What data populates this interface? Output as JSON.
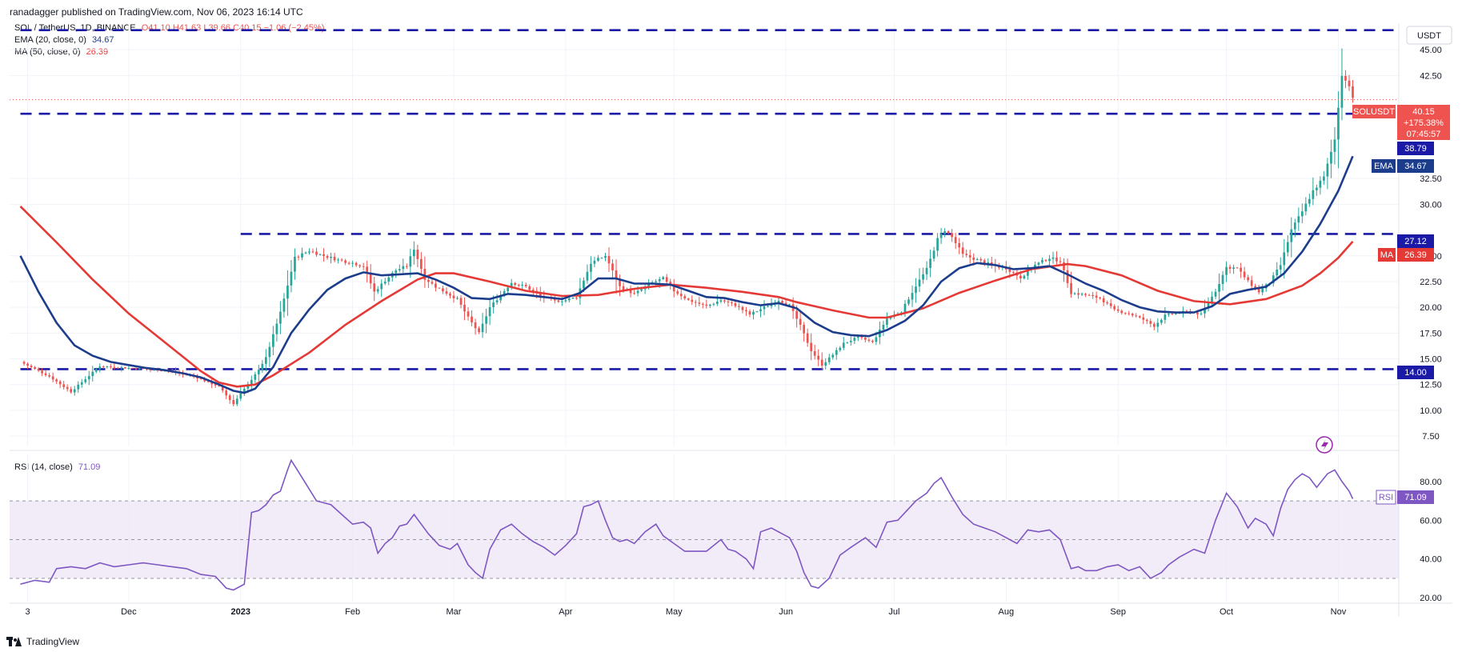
{
  "header": {
    "publisher": "ranadagger published on TradingView.com, Nov 06, 2023 16:14 UTC"
  },
  "legend": {
    "symbol": "SOL / TetherUS, 1D, BINANCE",
    "ohlc": "O41.10 H41.63 L39.66 C40.15 −1.06 (−2.45%)",
    "ema": {
      "label": "EMA (20, close, 0)",
      "value": "34.67"
    },
    "ma": {
      "label": "MA (50, close, 0)",
      "value": "26.39"
    },
    "rsi": {
      "label": "RSI (14, close)",
      "value": "71.09"
    }
  },
  "axis": {
    "currency": "USDT"
  },
  "tags": {
    "symbol_name": "SOLUSDT",
    "last_price": "40.15",
    "change": "+175.38%",
    "countdown": "07:45:57",
    "level_top_right": "38.79",
    "ema_name": "EMA",
    "ema_value": "34.67",
    "ma_name": "MA",
    "ma_value": "26.39",
    "level_mid": "27.12",
    "level_low": "14.00",
    "rsi_name": "RSI",
    "rsi_value": "71.09"
  },
  "colors": {
    "up": "#26a69a",
    "down": "#ef5350",
    "ema": "#1c3c8c",
    "ma": "#e53935",
    "level": "#1a1aa6",
    "rsi": "#7e57c2",
    "rsi_band": "#ede7f6"
  },
  "footer": {
    "brand": "TradingView"
  },
  "chart_data": {
    "type": "candlestick",
    "title": "SOL / TetherUS, 1D, BINANCE",
    "y_ticks": [
      45.0,
      42.5,
      32.5,
      30.0,
      25.0,
      22.5,
      20.0,
      17.5,
      15.0,
      12.5,
      10.0,
      7.5
    ],
    "y_range": [
      6.5,
      47.5
    ],
    "x_ticks": [
      "3",
      "Dec",
      "2023",
      "Feb",
      "Mar",
      "Apr",
      "May",
      "Jun",
      "Jul",
      "Aug",
      "Sep",
      "Oct",
      "Nov"
    ],
    "x_tick_days": [
      2,
      30,
      61,
      92,
      120,
      151,
      181,
      212,
      242,
      273,
      304,
      334,
      365
    ],
    "horizontal_levels": [
      {
        "value": 46.9,
        "from_day": 0
      },
      {
        "value": 38.79,
        "from_day": 0
      },
      {
        "value": 27.12,
        "from_day": 61
      },
      {
        "value": 14.0,
        "from_day": 0
      }
    ],
    "price_keypoints": [
      [
        0,
        14.7
      ],
      [
        8,
        13.3
      ],
      [
        14,
        11.8
      ],
      [
        22,
        14.3
      ],
      [
        30,
        14.1
      ],
      [
        40,
        13.9
      ],
      [
        48,
        13.3
      ],
      [
        55,
        12.3
      ],
      [
        59,
        10.6
      ],
      [
        61,
        11.7
      ],
      [
        64,
        12.9
      ],
      [
        68,
        15.1
      ],
      [
        72,
        19.5
      ],
      [
        76,
        24.8
      ],
      [
        80,
        25.5
      ],
      [
        84,
        25.0
      ],
      [
        88,
        24.6
      ],
      [
        92,
        24.3
      ],
      [
        95,
        24.0
      ],
      [
        98,
        21.5
      ],
      [
        101,
        22.6
      ],
      [
        104,
        23.6
      ],
      [
        107,
        24.0
      ],
      [
        109,
        25.7
      ],
      [
        112,
        22.8
      ],
      [
        115,
        22.0
      ],
      [
        118,
        21.4
      ],
      [
        121,
        20.8
      ],
      [
        124,
        19.0
      ],
      [
        127,
        17.5
      ],
      [
        130,
        20.0
      ],
      [
        133,
        21.2
      ],
      [
        136,
        22.4
      ],
      [
        140,
        22.0
      ],
      [
        144,
        21.1
      ],
      [
        148,
        20.6
      ],
      [
        151,
        20.7
      ],
      [
        154,
        21.0
      ],
      [
        158,
        24.3
      ],
      [
        162,
        25.0
      ],
      [
        166,
        22.0
      ],
      [
        170,
        21.3
      ],
      [
        175,
        22.4
      ],
      [
        178,
        22.8
      ],
      [
        181,
        21.6
      ],
      [
        185,
        20.7
      ],
      [
        190,
        20.1
      ],
      [
        194,
        20.7
      ],
      [
        198,
        20.2
      ],
      [
        202,
        19.3
      ],
      [
        206,
        20.0
      ],
      [
        210,
        20.7
      ],
      [
        213,
        20.2
      ],
      [
        216,
        18.2
      ],
      [
        219,
        15.8
      ],
      [
        222,
        14.4
      ],
      [
        225,
        15.4
      ],
      [
        228,
        16.5
      ],
      [
        232,
        17.1
      ],
      [
        236,
        16.6
      ],
      [
        240,
        18.9
      ],
      [
        244,
        19.6
      ],
      [
        248,
        22.1
      ],
      [
        251,
        23.7
      ],
      [
        254,
        26.6
      ],
      [
        256,
        27.5
      ],
      [
        258,
        26.8
      ],
      [
        261,
        25.1
      ],
      [
        265,
        24.6
      ],
      [
        269,
        24.1
      ],
      [
        273,
        23.8
      ],
      [
        277,
        22.9
      ],
      [
        281,
        24.1
      ],
      [
        285,
        24.8
      ],
      [
        288,
        24.5
      ],
      [
        291,
        21.4
      ],
      [
        295,
        21.2
      ],
      [
        299,
        20.9
      ],
      [
        303,
        19.7
      ],
      [
        307,
        19.4
      ],
      [
        311,
        18.8
      ],
      [
        314,
        18.2
      ],
      [
        317,
        19.2
      ],
      [
        321,
        19.5
      ],
      [
        324,
        19.6
      ],
      [
        327,
        19.3
      ],
      [
        331,
        21.6
      ],
      [
        334,
        23.9
      ],
      [
        337,
        23.8
      ],
      [
        340,
        22.5
      ],
      [
        343,
        21.5
      ],
      [
        346,
        22.4
      ],
      [
        349,
        24.1
      ],
      [
        352,
        27.5
      ],
      [
        355,
        29.3
      ],
      [
        358,
        31.3
      ],
      [
        361,
        32.6
      ],
      [
        364,
        36.3
      ],
      [
        365,
        39.5
      ],
      [
        366,
        42.7
      ],
      [
        367,
        42.0
      ],
      [
        368,
        41.6
      ],
      [
        369,
        40.15
      ]
    ],
    "ema20_keypoints": [
      [
        0,
        25.0
      ],
      [
        5,
        21.5
      ],
      [
        10,
        18.5
      ],
      [
        15,
        16.3
      ],
      [
        20,
        15.3
      ],
      [
        25,
        14.7
      ],
      [
        30,
        14.4
      ],
      [
        35,
        14.1
      ],
      [
        40,
        13.9
      ],
      [
        45,
        13.6
      ],
      [
        50,
        13.2
      ],
      [
        55,
        12.5
      ],
      [
        59,
        11.9
      ],
      [
        62,
        11.7
      ],
      [
        65,
        12.1
      ],
      [
        70,
        14.2
      ],
      [
        75,
        17.5
      ],
      [
        80,
        19.8
      ],
      [
        85,
        21.7
      ],
      [
        90,
        22.8
      ],
      [
        95,
        23.4
      ],
      [
        100,
        23.1
      ],
      [
        105,
        23.2
      ],
      [
        110,
        23.3
      ],
      [
        115,
        22.7
      ],
      [
        120,
        21.9
      ],
      [
        125,
        20.9
      ],
      [
        130,
        20.8
      ],
      [
        135,
        21.3
      ],
      [
        140,
        21.2
      ],
      [
        145,
        21.0
      ],
      [
        150,
        20.8
      ],
      [
        155,
        21.4
      ],
      [
        160,
        22.8
      ],
      [
        165,
        22.8
      ],
      [
        170,
        22.3
      ],
      [
        175,
        22.3
      ],
      [
        180,
        22.2
      ],
      [
        185,
        21.6
      ],
      [
        190,
        21.0
      ],
      [
        195,
        20.9
      ],
      [
        200,
        20.5
      ],
      [
        205,
        20.2
      ],
      [
        210,
        20.4
      ],
      [
        215,
        19.9
      ],
      [
        220,
        18.5
      ],
      [
        225,
        17.6
      ],
      [
        230,
        17.3
      ],
      [
        235,
        17.2
      ],
      [
        240,
        17.8
      ],
      [
        245,
        18.7
      ],
      [
        250,
        20.2
      ],
      [
        255,
        22.5
      ],
      [
        260,
        23.8
      ],
      [
        265,
        24.3
      ],
      [
        270,
        24.1
      ],
      [
        275,
        23.7
      ],
      [
        280,
        23.8
      ],
      [
        285,
        24.0
      ],
      [
        290,
        23.2
      ],
      [
        295,
        22.3
      ],
      [
        300,
        21.6
      ],
      [
        305,
        20.7
      ],
      [
        310,
        20.0
      ],
      [
        315,
        19.6
      ],
      [
        320,
        19.5
      ],
      [
        325,
        19.5
      ],
      [
        330,
        20.1
      ],
      [
        335,
        21.3
      ],
      [
        340,
        21.7
      ],
      [
        345,
        22.0
      ],
      [
        350,
        23.3
      ],
      [
        355,
        25.4
      ],
      [
        360,
        28.1
      ],
      [
        365,
        31.3
      ],
      [
        369,
        34.67
      ]
    ],
    "ma50_keypoints": [
      [
        0,
        29.8
      ],
      [
        10,
        26.3
      ],
      [
        20,
        22.7
      ],
      [
        30,
        19.4
      ],
      [
        40,
        16.6
      ],
      [
        50,
        13.8
      ],
      [
        55,
        12.7
      ],
      [
        60,
        12.3
      ],
      [
        65,
        12.5
      ],
      [
        70,
        13.4
      ],
      [
        80,
        15.6
      ],
      [
        90,
        18.3
      ],
      [
        100,
        20.6
      ],
      [
        110,
        22.7
      ],
      [
        115,
        23.3
      ],
      [
        120,
        23.3
      ],
      [
        130,
        22.5
      ],
      [
        140,
        21.6
      ],
      [
        150,
        21.1
      ],
      [
        160,
        21.2
      ],
      [
        170,
        21.8
      ],
      [
        180,
        22.2
      ],
      [
        190,
        21.9
      ],
      [
        200,
        21.5
      ],
      [
        210,
        21.0
      ],
      [
        215,
        20.5
      ],
      [
        225,
        19.7
      ],
      [
        235,
        19.0
      ],
      [
        240,
        19.0
      ],
      [
        250,
        19.9
      ],
      [
        260,
        21.4
      ],
      [
        270,
        22.6
      ],
      [
        280,
        23.7
      ],
      [
        290,
        24.2
      ],
      [
        295,
        24.0
      ],
      [
        305,
        23.1
      ],
      [
        315,
        21.6
      ],
      [
        325,
        20.6
      ],
      [
        335,
        20.3
      ],
      [
        345,
        20.8
      ],
      [
        355,
        22.1
      ],
      [
        360,
        23.3
      ],
      [
        365,
        24.8
      ],
      [
        369,
        26.39
      ]
    ],
    "rsi_ticks": [
      80.0,
      60.0,
      40.0,
      20.0
    ],
    "rsi_band": [
      30,
      70
    ],
    "rsi_keypoints": [
      [
        0,
        27
      ],
      [
        4,
        29
      ],
      [
        8,
        28
      ],
      [
        10,
        35
      ],
      [
        14,
        36
      ],
      [
        18,
        35
      ],
      [
        22,
        38
      ],
      [
        26,
        36
      ],
      [
        30,
        37
      ],
      [
        34,
        38
      ],
      [
        38,
        37
      ],
      [
        42,
        36
      ],
      [
        46,
        35
      ],
      [
        50,
        32
      ],
      [
        54,
        31
      ],
      [
        57,
        25
      ],
      [
        59,
        24
      ],
      [
        62,
        27
      ],
      [
        64,
        64
      ],
      [
        66,
        65
      ],
      [
        68,
        68
      ],
      [
        70,
        73
      ],
      [
        72,
        75
      ],
      [
        74,
        86
      ],
      [
        75,
        91
      ],
      [
        77,
        85
      ],
      [
        79,
        79
      ],
      [
        82,
        70
      ],
      [
        86,
        68
      ],
      [
        89,
        63
      ],
      [
        92,
        58
      ],
      [
        95,
        59
      ],
      [
        97,
        56
      ],
      [
        99,
        43
      ],
      [
        101,
        48
      ],
      [
        103,
        51
      ],
      [
        105,
        57
      ],
      [
        107,
        58
      ],
      [
        109,
        63
      ],
      [
        111,
        58
      ],
      [
        113,
        53
      ],
      [
        116,
        47
      ],
      [
        119,
        45
      ],
      [
        121,
        48
      ],
      [
        124,
        37
      ],
      [
        126,
        33
      ],
      [
        128,
        30
      ],
      [
        130,
        45
      ],
      [
        133,
        55
      ],
      [
        136,
        58
      ],
      [
        139,
        53
      ],
      [
        142,
        49
      ],
      [
        145,
        46
      ],
      [
        148,
        42
      ],
      [
        151,
        47
      ],
      [
        154,
        53
      ],
      [
        156,
        67
      ],
      [
        158,
        68
      ],
      [
        160,
        70
      ],
      [
        162,
        60
      ],
      [
        164,
        51
      ],
      [
        166,
        49
      ],
      [
        168,
        50
      ],
      [
        170,
        48
      ],
      [
        173,
        54
      ],
      [
        176,
        58
      ],
      [
        178,
        52
      ],
      [
        181,
        48
      ],
      [
        184,
        44
      ],
      [
        187,
        44
      ],
      [
        190,
        44
      ],
      [
        194,
        50
      ],
      [
        196,
        45
      ],
      [
        198,
        44
      ],
      [
        201,
        40
      ],
      [
        203,
        35
      ],
      [
        205,
        54
      ],
      [
        208,
        56
      ],
      [
        211,
        53
      ],
      [
        213,
        51
      ],
      [
        215,
        44
      ],
      [
        217,
        33
      ],
      [
        219,
        26
      ],
      [
        221,
        25
      ],
      [
        224,
        30
      ],
      [
        227,
        42
      ],
      [
        230,
        46
      ],
      [
        234,
        51
      ],
      [
        237,
        46
      ],
      [
        240,
        59
      ],
      [
        243,
        60
      ],
      [
        246,
        66
      ],
      [
        248,
        70
      ],
      [
        251,
        74
      ],
      [
        253,
        79
      ],
      [
        255,
        82
      ],
      [
        258,
        72
      ],
      [
        261,
        63
      ],
      [
        264,
        58
      ],
      [
        267,
        56
      ],
      [
        270,
        54
      ],
      [
        273,
        51
      ],
      [
        276,
        48
      ],
      [
        279,
        55
      ],
      [
        282,
        54
      ],
      [
        285,
        55
      ],
      [
        288,
        50
      ],
      [
        291,
        35
      ],
      [
        293,
        36
      ],
      [
        295,
        34
      ],
      [
        298,
        34
      ],
      [
        301,
        36
      ],
      [
        304,
        37
      ],
      [
        307,
        34
      ],
      [
        310,
        36
      ],
      [
        313,
        30
      ],
      [
        316,
        33
      ],
      [
        318,
        37
      ],
      [
        321,
        41
      ],
      [
        325,
        45
      ],
      [
        328,
        43
      ],
      [
        331,
        60
      ],
      [
        334,
        74
      ],
      [
        337,
        67
      ],
      [
        340,
        56
      ],
      [
        342,
        61
      ],
      [
        345,
        58
      ],
      [
        347,
        52
      ],
      [
        349,
        66
      ],
      [
        351,
        76
      ],
      [
        353,
        81
      ],
      [
        355,
        84
      ],
      [
        357,
        82
      ],
      [
        359,
        77
      ],
      [
        362,
        84
      ],
      [
        364,
        86
      ],
      [
        366,
        80
      ],
      [
        368,
        75
      ],
      [
        369,
        71.09
      ]
    ]
  }
}
